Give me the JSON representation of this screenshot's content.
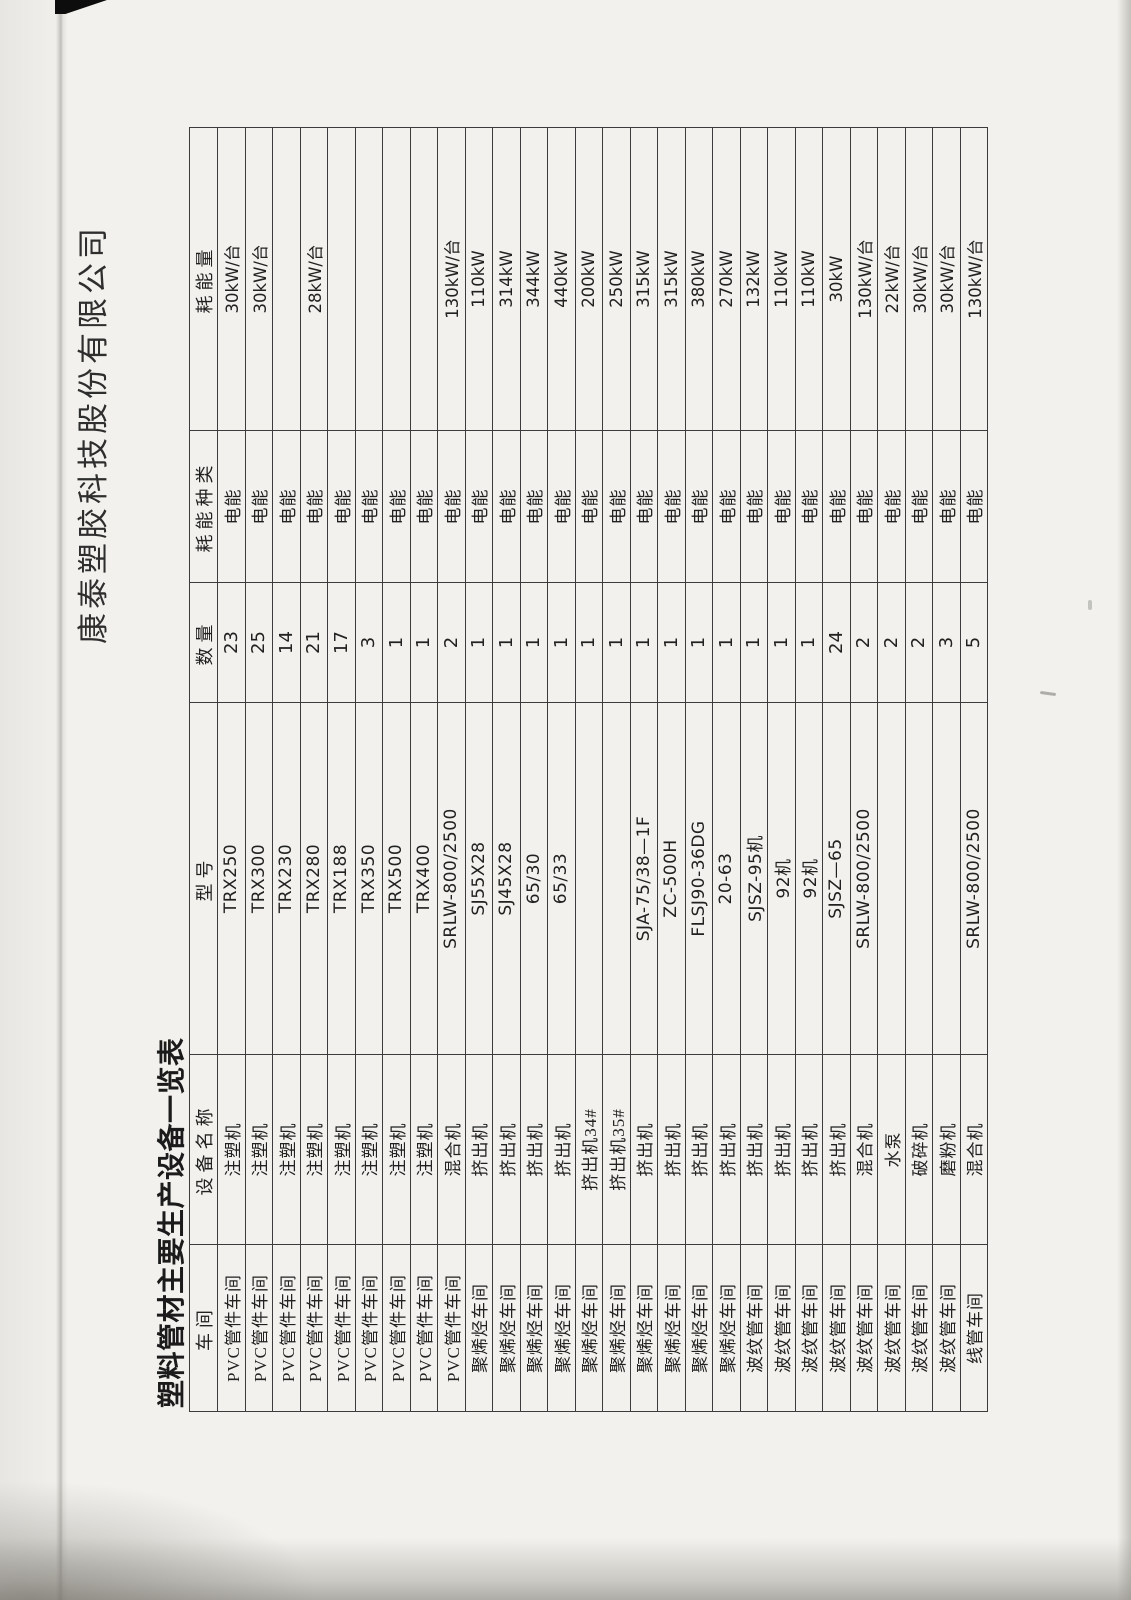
{
  "page": {
    "company_header": "康泰塑胶科技股份有限公司",
    "title": "塑料管材主要生产设备一览表"
  },
  "table": {
    "headers": [
      "车间",
      "设备名称",
      "型号",
      "数量",
      "耗能种类",
      "耗能量"
    ],
    "rows": [
      [
        "PVC管件车间",
        "注塑机",
        "TRX250",
        "23",
        "电能",
        "30kW/台"
      ],
      [
        "PVC管件车间",
        "注塑机",
        "TRX300",
        "25",
        "电能",
        "30kW/台"
      ],
      [
        "PVC管件车间",
        "注塑机",
        "TRX230",
        "14",
        "电能",
        ""
      ],
      [
        "PVC管件车间",
        "注塑机",
        "TRX280",
        "21",
        "电能",
        "28kW/台"
      ],
      [
        "PVC管件车间",
        "注塑机",
        "TRX188",
        "17",
        "电能",
        ""
      ],
      [
        "PVC管件车间",
        "注塑机",
        "TRX350",
        "3",
        "电能",
        ""
      ],
      [
        "PVC管件车间",
        "注塑机",
        "TRX500",
        "1",
        "电能",
        ""
      ],
      [
        "PVC管件车间",
        "注塑机",
        "TRX400",
        "1",
        "电能",
        ""
      ],
      [
        "PVC管件车间",
        "混合机",
        "SRLW-800/2500",
        "2",
        "电能",
        "130kW/台"
      ],
      [
        "聚烯烃车间",
        "挤出机",
        "SJ55X28",
        "1",
        "电能",
        "110kW"
      ],
      [
        "聚烯烃车间",
        "挤出机",
        "SJ45X28",
        "1",
        "电能",
        "314kW"
      ],
      [
        "聚烯烃车间",
        "挤出机",
        "65/30",
        "1",
        "电能",
        "344kW"
      ],
      [
        "聚烯烃车间",
        "挤出机",
        "65/33",
        "1",
        "电能",
        "440kW"
      ],
      [
        "聚烯烃车间",
        "挤出机34#",
        "",
        "1",
        "电能",
        "200kW"
      ],
      [
        "聚烯烃车间",
        "挤出机35#",
        "",
        "1",
        "电能",
        "250kW"
      ],
      [
        "聚烯烃车间",
        "挤出机",
        "SJA-75/38—1F",
        "1",
        "电能",
        "315kW"
      ],
      [
        "聚烯烃车间",
        "挤出机",
        "ZC-500H",
        "1",
        "电能",
        "315kW"
      ],
      [
        "聚烯烃车间",
        "挤出机",
        "FLSJ90-36DG",
        "1",
        "电能",
        "380kW"
      ],
      [
        "聚烯烃车间",
        "挤出机",
        "20-63",
        "1",
        "电能",
        "270kW"
      ],
      [
        "波纹管车间",
        "挤出机",
        "SJSZ-95机",
        "1",
        "电能",
        "132kW"
      ],
      [
        "波纹管车间",
        "挤出机",
        "92机",
        "1",
        "电能",
        "110kW"
      ],
      [
        "波纹管车间",
        "挤出机",
        "92机",
        "1",
        "电能",
        "110kW"
      ],
      [
        "波纹管车间",
        "挤出机",
        "SJSZ—65",
        "24",
        "电能",
        "30kW"
      ],
      [
        "波纹管车间",
        "混合机",
        "SRLW-800/2500",
        "2",
        "电能",
        "130kW/台"
      ],
      [
        "波纹管车间",
        "水泵",
        "",
        "2",
        "电能",
        "22kW/台"
      ],
      [
        "波纹管车间",
        "破碎机",
        "",
        "2",
        "电能",
        "30kW/台"
      ],
      [
        "波纹管车间",
        "磨粉机",
        "",
        "3",
        "电能",
        "30kW/台"
      ],
      [
        "线管车间",
        "混合机",
        "SRLW-800/2500",
        "5",
        "电能",
        "130kW/台"
      ]
    ]
  }
}
